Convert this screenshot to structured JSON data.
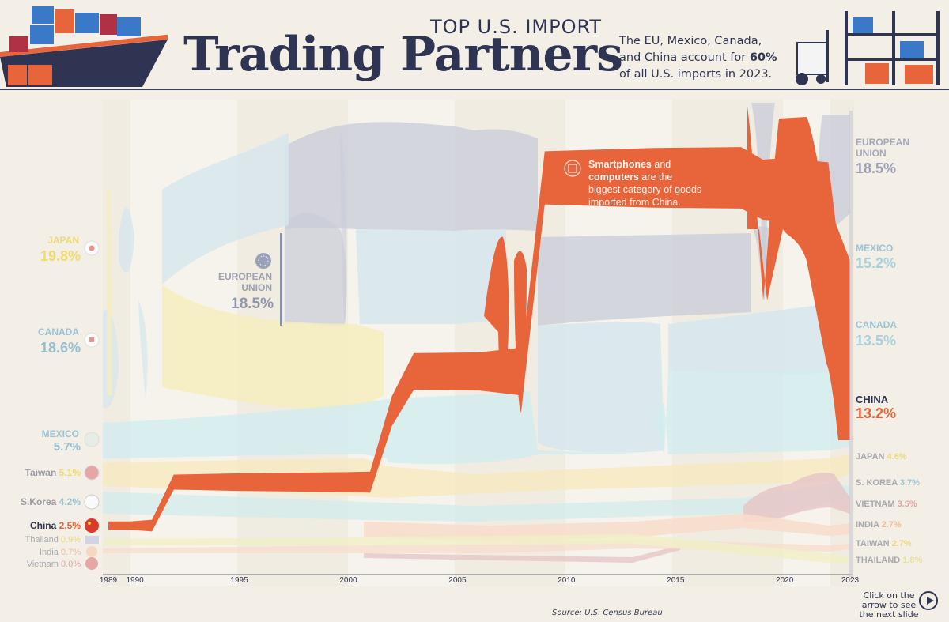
{
  "header": {
    "supertitle": "TOP U.S. IMPORT",
    "title": "Trading Partners",
    "subtitle_pre": "The EU, Mexico, Canada, and China account for ",
    "subtitle_bold": "60%",
    "subtitle_post": " of all U.S. imports in 2023."
  },
  "annotation": {
    "bold1": "Smartphones",
    "text1": " and ",
    "bold2": "computers",
    "text2": " are the biggest category of goods imported from China."
  },
  "source": "Source: U.S. Census Bureau",
  "cta": "Click on the arrow to see the next slide",
  "colors": {
    "china": "#e8643a",
    "eu": "#c8ccd8",
    "mexico": "#cfe9ee",
    "canada": "#d3e6ee",
    "japan": "#f6eebb",
    "skorea": "#d4ecec",
    "vietnam": "#e6c7c7",
    "india": "#f8dccb",
    "taiwan": "#f7e8bf",
    "thailand": "#f1efc8",
    "text_dark": "#2f3452"
  },
  "chart_data": {
    "type": "area",
    "x_ticks": [
      "1989",
      "1990",
      "1995",
      "2000",
      "2005",
      "2010",
      "2015",
      "2020",
      "2023"
    ],
    "start_labels": [
      {
        "name": "JAPAN",
        "value": "19.8%"
      },
      {
        "name": "CANADA",
        "value": "18.6%"
      },
      {
        "name": "MEXICO",
        "value": "5.7%"
      },
      {
        "name": "Taiwan",
        "value": "5.1%"
      },
      {
        "name": "S.Korea",
        "value": "4.2%"
      },
      {
        "name": "China",
        "value": "2.5%"
      },
      {
        "name": "Thailand",
        "value": "0.9%"
      },
      {
        "name": "India",
        "value": "0.7%"
      },
      {
        "name": "Vietnam",
        "value": "0.0%"
      }
    ],
    "eu_label": {
      "name": "EUROPEAN UNION",
      "value": "18.5%"
    },
    "end_labels": [
      {
        "name": "EUROPEAN UNION",
        "value": "18.5%"
      },
      {
        "name": "MEXICO",
        "value": "15.2%"
      },
      {
        "name": "CANADA",
        "value": "13.5%"
      },
      {
        "name": "CHINA",
        "value": "13.2%"
      },
      {
        "name": "JAPAN",
        "value": "4.6%"
      },
      {
        "name": "S. KOREA",
        "value": "3.7%"
      },
      {
        "name": "VIETNAM",
        "value": "3.5%"
      },
      {
        "name": "INDIA",
        "value": "2.7%"
      },
      {
        "name": "TAIWAN",
        "value": "2.7%"
      },
      {
        "name": "THAILAND",
        "value": "1.8%"
      }
    ],
    "series": [
      {
        "name": "China",
        "years": [
          1989,
          1990,
          1991,
          1992,
          1995,
          2000,
          2001,
          2002,
          2003,
          2006,
          2007,
          2008,
          2009,
          2014,
          2018,
          2019,
          2020,
          2022,
          2023
        ],
        "values": [
          2.5,
          2.5,
          3.5,
          4.5,
          5.3,
          6.0,
          6.3,
          9.0,
          11.0,
          11.5,
          13.0,
          14.5,
          16.0,
          18.0,
          18.5,
          18.1,
          19.0,
          16.5,
          13.2
        ]
      }
    ]
  }
}
